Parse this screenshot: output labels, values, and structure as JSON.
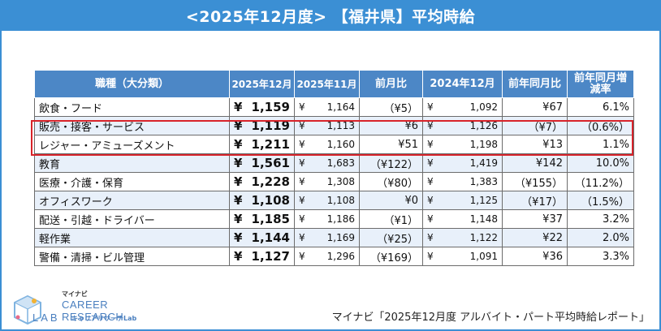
{
  "title": "<2025年12月度> 【福井県】平均時給",
  "columns": [
    "職種（大分類）",
    "2025年12月",
    "2025年11月",
    "前月比",
    "2024年12月",
    "前年同月比",
    "前年同月増減率"
  ],
  "rows": [
    {
      "category": "飲食・フード",
      "dec2025": "1,159",
      "nov2025": "1,164",
      "mom": "（¥5）",
      "dec2024": "1,092",
      "yoy": "¥67",
      "yoy_rate": "6.1%",
      "mom_neg": true,
      "yoy_neg": false,
      "rate_neg": false
    },
    {
      "category": "販売・接客・サービス",
      "dec2025": "1,119",
      "nov2025": "1,113",
      "mom": "¥6",
      "dec2024": "1,126",
      "yoy": "（¥7）",
      "yoy_rate": "（0.6%）",
      "mom_neg": false,
      "yoy_neg": true,
      "rate_neg": true
    },
    {
      "category": "レジャー・アミューズメント",
      "dec2025": "1,211",
      "nov2025": "1,160",
      "mom": "¥51",
      "dec2024": "1,198",
      "yoy": "¥13",
      "yoy_rate": "1.1%",
      "mom_neg": false,
      "yoy_neg": false,
      "rate_neg": false
    },
    {
      "category": "教育",
      "dec2025": "1,561",
      "nov2025": "1,683",
      "mom": "（¥122）",
      "dec2024": "1,419",
      "yoy": "¥142",
      "yoy_rate": "10.0%",
      "mom_neg": true,
      "yoy_neg": false,
      "rate_neg": false
    },
    {
      "category": "医療・介護・保育",
      "dec2025": "1,228",
      "nov2025": "1,308",
      "mom": "（¥80）",
      "dec2024": "1,383",
      "yoy": "（¥155）",
      "yoy_rate": "（11.2%）",
      "mom_neg": true,
      "yoy_neg": true,
      "rate_neg": true
    },
    {
      "category": "オフィスワーク",
      "dec2025": "1,108",
      "nov2025": "1,108",
      "mom": "¥0",
      "dec2024": "1,125",
      "yoy": "（¥17）",
      "yoy_rate": "（1.5%）",
      "mom_neg": false,
      "yoy_neg": true,
      "rate_neg": true
    },
    {
      "category": "配送・引越・ドライバー",
      "dec2025": "1,185",
      "nov2025": "1,186",
      "mom": "（¥1）",
      "dec2024": "1,148",
      "yoy": "¥37",
      "yoy_rate": "3.2%",
      "mom_neg": true,
      "yoy_neg": false,
      "rate_neg": false
    },
    {
      "category": "軽作業",
      "dec2025": "1,144",
      "nov2025": "1,169",
      "mom": "（¥25）",
      "dec2024": "1,122",
      "yoy": "¥22",
      "yoy_rate": "2.0%",
      "mom_neg": true,
      "yoy_neg": false,
      "rate_neg": false
    },
    {
      "category": "警備・清掃・ビル管理",
      "dec2025": "1,127",
      "nov2025": "1,296",
      "mom": "（¥169）",
      "dec2024": "1,091",
      "yoy": "¥36",
      "yoy_rate": "3.3%",
      "mom_neg": true,
      "yoy_neg": false,
      "rate_neg": false
    }
  ],
  "currency_symbol": "¥",
  "logo": {
    "kana": "マイナビ",
    "line1": "CAREER RESEARCH",
    "line2": "LAB",
    "sub": "キャリアリサーチLab"
  },
  "source": "マイナビ「2025年12月度 アルバイト・パート平均時給レポート」",
  "colors": {
    "header_blue": "#3b8fd4",
    "table_header_blue": "#4c87c6",
    "negative_red": "#e03030",
    "highlight_red": "#d8232a"
  }
}
